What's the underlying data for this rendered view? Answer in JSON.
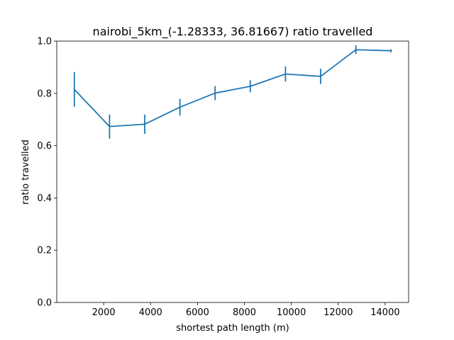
{
  "chart_data": {
    "type": "line",
    "title": "nairobi_5km_(-1.28333, 36.81667) ratio travelled",
    "xlabel": "shortest path length (m)",
    "ylabel": "ratio travelled",
    "xlim": [
      0,
      15000
    ],
    "ylim": [
      0.0,
      1.0
    ],
    "xticks": [
      2000,
      4000,
      6000,
      8000,
      10000,
      12000,
      14000
    ],
    "yticks": [
      0.0,
      0.2,
      0.4,
      0.6,
      0.8,
      1.0
    ],
    "xtick_labels": [
      "2000",
      "4000",
      "6000",
      "8000",
      "10000",
      "12000",
      "14000"
    ],
    "ytick_labels": [
      "0.0",
      "0.2",
      "0.4",
      "0.6",
      "0.8",
      "1.0"
    ],
    "grid": false,
    "legend": "none",
    "series": [
      {
        "color": "#1f77b4",
        "x": [
          750,
          2250,
          3750,
          5250,
          6750,
          8250,
          9750,
          11250,
          12750,
          14250
        ],
        "y": [
          0.815,
          0.673,
          0.682,
          0.747,
          0.801,
          0.827,
          0.874,
          0.865,
          0.967,
          0.963
        ],
        "err": [
          0.066,
          0.046,
          0.037,
          0.032,
          0.027,
          0.023,
          0.029,
          0.029,
          0.017,
          0.006
        ]
      }
    ]
  }
}
